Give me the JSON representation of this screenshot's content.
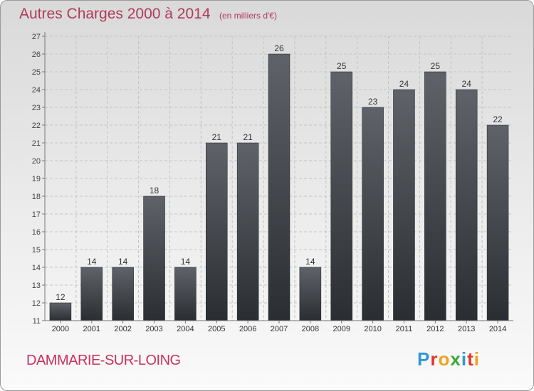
{
  "chart_data": {
    "type": "bar",
    "title": "Autres Charges 2000 à 2014",
    "unit_note": "(en milliers d'€)",
    "categories": [
      "2000",
      "2001",
      "2002",
      "2003",
      "2004",
      "2005",
      "2006",
      "2007",
      "2008",
      "2009",
      "2010",
      "2011",
      "2012",
      "2013",
      "2014"
    ],
    "values": [
      12,
      14,
      14,
      18,
      14,
      21,
      21,
      26,
      14,
      25,
      23,
      24,
      25,
      24,
      22
    ],
    "ylim": [
      11,
      27
    ],
    "yticks": [
      11,
      12,
      13,
      14,
      15,
      16,
      17,
      18,
      19,
      20,
      21,
      22,
      23,
      24,
      25,
      26,
      27
    ],
    "grid": true,
    "colors": {
      "bar_top": "#5f6369",
      "bar_bottom": "#2a2e33",
      "title": "#b03a5b",
      "city": "#c8325c"
    }
  },
  "footer": {
    "city": "DAMMARIE-SUR-LOING",
    "logo_text": "Proxiti"
  },
  "logo_colors": [
    "#2f9ad4",
    "#e5322d",
    "#f0a21c",
    "#39a935",
    "#2f9ad4",
    "#e5322d",
    "#f0a21c"
  ]
}
